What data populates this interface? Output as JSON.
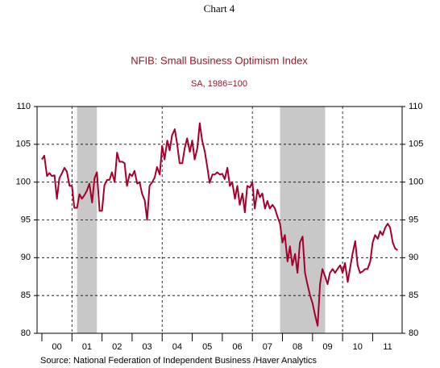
{
  "chart_data": {
    "type": "line",
    "header": "Chart 4",
    "title": "NFIB: Small Business Optimism Index",
    "subtitle": "SA, 1986=100",
    "source": "Source:  National Federation of Independent Business /Haver Analytics",
    "color": "#a3002c",
    "shade_color": "#c8c8c8",
    "shaded": [
      [
        2001.17,
        2001.83
      ],
      [
        2007.92,
        2009.42
      ]
    ],
    "xlim": [
      1999.84,
      2011.98
    ],
    "xticks": [
      2000,
      2001,
      2002,
      2003,
      2004,
      2005,
      2006,
      2007,
      2008,
      2009,
      2010,
      2011
    ],
    "xgrid": [
      2001,
      2004,
      2007,
      2010
    ],
    "x_labels": [
      {
        "value": 2000.5,
        "label": "00"
      },
      {
        "value": 2001.5,
        "label": "01"
      },
      {
        "value": 2002.5,
        "label": "02"
      },
      {
        "value": 2003.5,
        "label": "03"
      },
      {
        "value": 2004.5,
        "label": "04"
      },
      {
        "value": 2005.5,
        "label": "05"
      },
      {
        "value": 2006.5,
        "label": "06"
      },
      {
        "value": 2007.5,
        "label": "07"
      },
      {
        "value": 2008.5,
        "label": "08"
      },
      {
        "value": 2009.5,
        "label": "09"
      },
      {
        "value": 2010.5,
        "label": "10"
      },
      {
        "value": 2011.5,
        "label": "11"
      }
    ],
    "ylim": [
      80,
      110
    ],
    "yticks": [
      80,
      85,
      90,
      95,
      100,
      105,
      110
    ],
    "y2lim": [
      80,
      110
    ],
    "y2ticks": [
      80,
      85,
      90,
      95,
      100,
      105,
      110
    ],
    "grid": true,
    "x": [
      2000.0,
      2000.08,
      2000.17,
      2000.25,
      2000.33,
      2000.42,
      2000.5,
      2000.58,
      2000.67,
      2000.75,
      2000.83,
      2000.92,
      2001.0,
      2001.08,
      2001.17,
      2001.25,
      2001.33,
      2001.42,
      2001.5,
      2001.58,
      2001.67,
      2001.75,
      2001.83,
      2001.92,
      2002.0,
      2002.08,
      2002.17,
      2002.25,
      2002.33,
      2002.42,
      2002.5,
      2002.58,
      2002.67,
      2002.75,
      2002.83,
      2002.92,
      2003.0,
      2003.08,
      2003.17,
      2003.25,
      2003.33,
      2003.42,
      2003.5,
      2003.58,
      2003.67,
      2003.75,
      2003.83,
      2003.92,
      2004.0,
      2004.08,
      2004.17,
      2004.25,
      2004.33,
      2004.42,
      2004.5,
      2004.58,
      2004.67,
      2004.75,
      2004.83,
      2004.92,
      2005.0,
      2005.08,
      2005.17,
      2005.25,
      2005.33,
      2005.42,
      2005.5,
      2005.58,
      2005.67,
      2005.75,
      2005.83,
      2005.92,
      2006.0,
      2006.08,
      2006.17,
      2006.25,
      2006.33,
      2006.42,
      2006.5,
      2006.58,
      2006.67,
      2006.75,
      2006.83,
      2006.92,
      2007.0,
      2007.08,
      2007.17,
      2007.25,
      2007.33,
      2007.42,
      2007.5,
      2007.58,
      2007.67,
      2007.75,
      2007.83,
      2007.92,
      2008.0,
      2008.08,
      2008.17,
      2008.25,
      2008.33,
      2008.42,
      2008.5,
      2008.58,
      2008.67,
      2008.75,
      2008.83,
      2008.92,
      2009.0,
      2009.08,
      2009.17,
      2009.25,
      2009.33,
      2009.42,
      2009.5,
      2009.58,
      2009.67,
      2009.75,
      2009.83,
      2009.92,
      2010.0,
      2010.08,
      2010.17,
      2010.33,
      2010.42,
      2010.5,
      2010.58,
      2010.67,
      2010.75,
      2010.83,
      2010.92,
      2011.0,
      2011.08,
      2011.17,
      2011.25,
      2011.33,
      2011.42,
      2011.5,
      2011.58,
      2011.67,
      2011.75,
      2011.83
    ],
    "values": [
      103.0,
      103.5,
      100.8,
      101.2,
      100.8,
      100.9,
      97.8,
      100.5,
      101.2,
      101.9,
      101.4,
      99.5,
      99.5,
      96.6,
      96.6,
      98.4,
      97.8,
      98.3,
      98.9,
      99.8,
      97.3,
      100.5,
      101.3,
      96.2,
      96.2,
      99.6,
      100.3,
      100.3,
      101.3,
      100.0,
      103.9,
      102.7,
      102.7,
      102.5,
      99.5,
      101.1,
      100.8,
      101.5,
      99.8,
      100.0,
      98.5,
      97.6,
      95.0,
      99.5,
      100.0,
      100.6,
      102.0,
      101.0,
      104.8,
      103.0,
      105.5,
      104.2,
      106.2,
      107.0,
      105.0,
      102.5,
      102.5,
      104.5,
      105.8,
      104.0,
      105.5,
      103.0,
      104.5,
      107.8,
      105.5,
      104.0,
      102.0,
      99.9,
      101.0,
      101.0,
      101.3,
      101.0,
      101.1,
      100.4,
      101.9,
      99.5,
      100.0,
      97.8,
      99.5,
      97.0,
      98.5,
      96.0,
      99.5,
      99.3,
      100.0,
      96.5,
      99.0,
      98.0,
      98.5,
      96.5,
      97.5,
      96.5,
      97.0,
      96.5,
      95.5,
      94.5,
      92.0,
      93.0,
      89.5,
      91.5,
      89.0,
      90.5,
      88.0,
      92.0,
      92.8,
      88.0,
      86.5,
      85.0,
      84.0,
      82.5,
      81.0,
      86.5,
      88.5,
      87.5,
      86.5,
      88.0,
      88.5,
      88.0,
      88.5,
      89.0,
      88.0,
      89.3,
      86.8,
      90.5,
      92.2,
      89.0,
      88.0,
      88.2,
      88.5,
      88.5,
      89.5,
      92.0,
      93.0,
      92.5,
      93.5,
      93.0,
      94.0,
      94.5,
      94.0,
      92.0,
      91.2,
      91.0
    ]
  }
}
